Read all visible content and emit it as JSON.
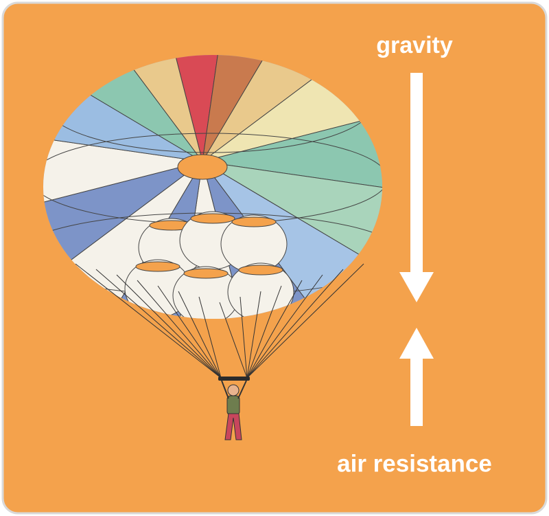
{
  "forces": [
    {
      "label": "gravity"
    },
    {
      "label": "air resistance"
    }
  ]
}
